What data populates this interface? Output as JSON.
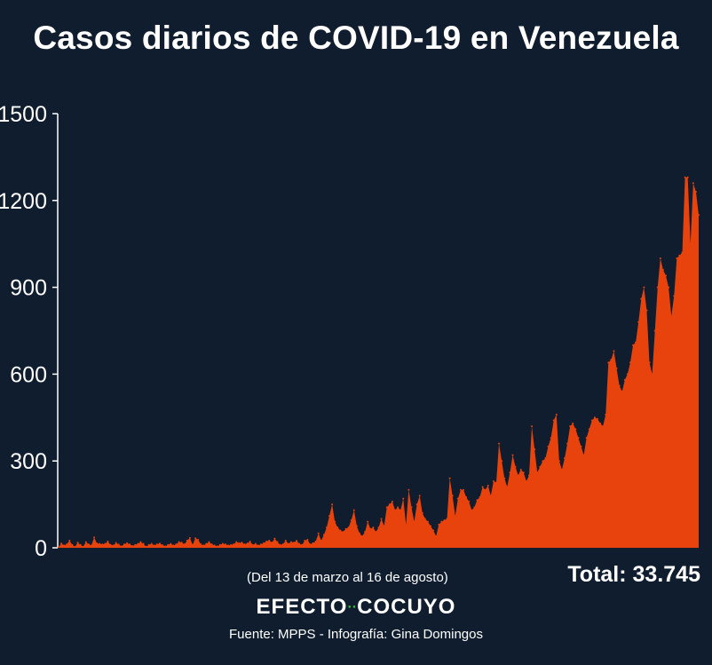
{
  "colors": {
    "background": "#0f1d2e",
    "area": "#e8430c",
    "text": "#ffffff",
    "brand_dots": "#3bbf3b"
  },
  "header": {
    "title": "Casos diarios de COVID-19 en Venezuela"
  },
  "footer": {
    "date_range": "(Del 13 de marzo al 16 de agosto)",
    "total": "Total: 33.745",
    "brand_left": "EFECTO",
    "brand_dots": "··",
    "brand_right": "COCUYO",
    "source": "Fuente: MPPS - Infografía: Gina Domingos"
  },
  "chart_data": {
    "type": "area",
    "title": "Casos diarios de COVID-19 en Venezuela",
    "xlabel": "",
    "ylabel": "",
    "ylim": [
      0,
      1500
    ],
    "yticks": [
      0,
      300,
      600,
      900,
      1200,
      1500
    ],
    "ytick_labels": [
      "0",
      "300",
      "600",
      "900",
      "1200",
      "1500"
    ],
    "x_start": "13 de marzo",
    "x_end": "16 de agosto",
    "grid": false,
    "series": [
      {
        "values": [
          2,
          15,
          8,
          12,
          25,
          10,
          3,
          18,
          10,
          4,
          20,
          12,
          8,
          36,
          15,
          14,
          12,
          14,
          22,
          10,
          8,
          17,
          11,
          5,
          12,
          16,
          12,
          6,
          10,
          14,
          20,
          14,
          4,
          10,
          14,
          8,
          12,
          15,
          9,
          5,
          10,
          14,
          8,
          12,
          20,
          18,
          12,
          25,
          34,
          10,
          33,
          28,
          12,
          8,
          14,
          20,
          12,
          8,
          5,
          10,
          14,
          12,
          8,
          10,
          12,
          20,
          16,
          18,
          12,
          15,
          22,
          10,
          14,
          8,
          12,
          16,
          22,
          25,
          18,
          32,
          20,
          10,
          12,
          25,
          14,
          20,
          18,
          24,
          14,
          10,
          25,
          28,
          12,
          16,
          22,
          50,
          25,
          45,
          70,
          110,
          150,
          90,
          70,
          60,
          55,
          65,
          70,
          95,
          130,
          75,
          50,
          40,
          55,
          90,
          65,
          70,
          55,
          70,
          100,
          75,
          140,
          150,
          160,
          130,
          140,
          130,
          170,
          80,
          200,
          140,
          90,
          150,
          180,
          120,
          100,
          90,
          75,
          60,
          40,
          80,
          90,
          95,
          100,
          240,
          180,
          110,
          170,
          200,
          200,
          175,
          160,
          130,
          140,
          165,
          175,
          210,
          200,
          215,
          180,
          230,
          225,
          360,
          300,
          240,
          210,
          260,
          320,
          280,
          250,
          270,
          260,
          230,
          250,
          420,
          340,
          260,
          280,
          300,
          310,
          350,
          380,
          440,
          460,
          300,
          270,
          310,
          360,
          420,
          430,
          410,
          380,
          350,
          320,
          380,
          410,
          440,
          450,
          445,
          430,
          420,
          460,
          640,
          650,
          680,
          620,
          560,
          540,
          580,
          600,
          640,
          700,
          710,
          780,
          860,
          900,
          820,
          640,
          600,
          750,
          900,
          1000,
          960,
          940,
          900,
          800,
          870,
          1000,
          1010,
          1020,
          1280,
          1280,
          1050,
          1260,
          1230,
          1150
        ]
      }
    ]
  }
}
